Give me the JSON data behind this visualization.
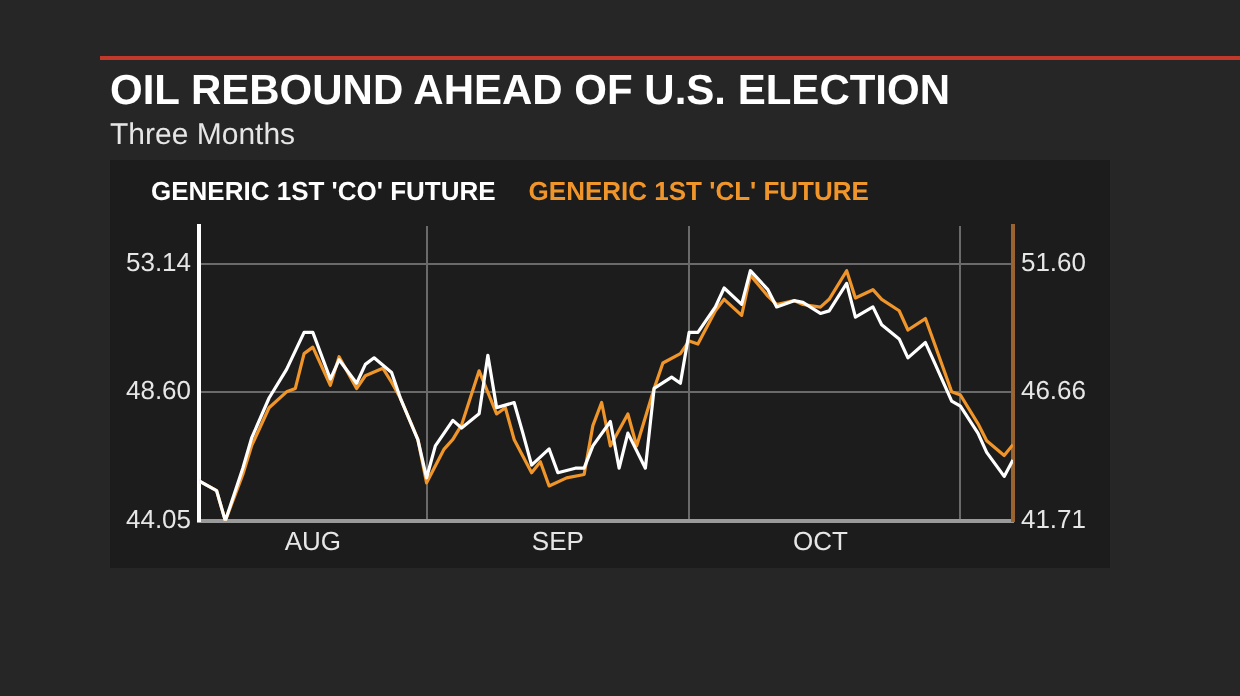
{
  "chart_data": {
    "type": "line",
    "title": "OIL REBOUND AHEAD OF U.S. ELECTION",
    "subtitle": "Three Months",
    "xlim": [
      "--08-06",
      "--11-07"
    ],
    "xticks": [
      {
        "value": "--08-19",
        "label": "AUG"
      },
      {
        "value": "--09-01",
        "label": null
      },
      {
        "value": "--09-16",
        "label": "SEP"
      },
      {
        "value": "--10-01",
        "label": null
      },
      {
        "value": "--10-16",
        "label": "OCT"
      },
      {
        "value": "--11-01",
        "label": null
      }
    ],
    "ylim": [
      44.05,
      54.47
    ],
    "yticks": [
      44.05,
      {
        "value": 48.6,
        "label": "48.60"
      },
      53.14
    ],
    "y2lim": [
      41.71,
      53.05
    ],
    "y2ticks": [
      41.71,
      46.66,
      {
        "value": 51.6,
        "label": "51.60"
      }
    ],
    "grid": true,
    "legend": "top left",
    "series": [
      {
        "name": "GENERIC 1ST 'CO' FUTURE",
        "color": "#ffffff",
        "x": [
          "--08-06",
          "--08-08",
          "--08-09",
          "--08-11",
          "--08-12",
          "--08-14",
          "--08-16",
          "--08-18",
          "--08-19",
          "--08-21",
          "--08-22",
          "--08-24",
          "--08-25",
          "--08-26",
          "--08-28",
          "--08-29",
          "--08-31",
          "--09-01",
          "--09-02",
          "--09-04",
          "--09-05",
          "--09-07",
          "--09-08",
          "--09-09",
          "--09-11",
          "--09-12",
          "--09-13",
          "--09-15",
          "--09-16",
          "--09-18",
          "--09-19",
          "--09-20",
          "--09-22",
          "--09-23",
          "--09-24",
          "--09-26",
          "--09-27",
          "--09-29",
          "--09-30",
          "--10-01",
          "--10-02",
          "--10-04",
          "--10-05",
          "--10-07",
          "--10-08",
          "--10-10",
          "--10-11",
          "--10-13",
          "--10-14",
          "--10-16",
          "--10-17",
          "--10-19",
          "--10-20",
          "--10-22",
          "--10-23",
          "--10-25",
          "--10-26",
          "--10-28",
          "--10-29",
          "--10-31",
          "--11-01",
          "--11-03",
          "--11-04",
          "--11-06",
          "--11-07"
        ],
        "values": [
          45.46,
          45.12,
          44.05,
          45.91,
          46.97,
          48.39,
          49.4,
          50.71,
          50.71,
          49.06,
          49.74,
          48.91,
          49.58,
          49.81,
          49.29,
          48.39,
          46.92,
          45.57,
          46.7,
          47.6,
          47.33,
          47.83,
          49.9,
          48.05,
          48.23,
          47.15,
          46.02,
          46.59,
          45.75,
          45.91,
          45.91,
          46.7,
          47.56,
          45.91,
          47.15,
          45.91,
          48.73,
          49.13,
          48.91,
          50.71,
          50.71,
          51.61,
          52.28,
          51.7,
          52.89,
          52.22,
          51.61,
          51.83,
          51.77,
          51.38,
          51.47,
          52.44,
          51.25,
          51.61,
          50.98,
          50.48,
          49.81,
          50.35,
          49.67,
          48.28,
          48.1,
          47.15,
          46.47,
          45.62,
          46.2
        ]
      },
      {
        "name": "GENERIC 1ST 'CL' FUTURE",
        "color": "#f0952a",
        "axis": "y2",
        "x": [
          "--08-06",
          "--08-08",
          "--08-09",
          "--08-11",
          "--08-12",
          "--08-14",
          "--08-16",
          "--08-17",
          "--08-18",
          "--08-19",
          "--08-21",
          "--08-22",
          "--08-24",
          "--08-25",
          "--08-27",
          "--08-28",
          "--08-29",
          "--08-31",
          "--09-01",
          "--09-03",
          "--09-04",
          "--09-05",
          "--09-07",
          "--09-09",
          "--09-10",
          "--09-11",
          "--09-13",
          "--09-14",
          "--09-15",
          "--09-17",
          "--09-19",
          "--09-20",
          "--09-21",
          "--09-22",
          "--09-24",
          "--09-25",
          "--09-27",
          "--09-28",
          "--09-30",
          "--10-01",
          "--10-02",
          "--10-04",
          "--10-05",
          "--10-07",
          "--10-08",
          "--10-10",
          "--10-11",
          "--10-13",
          "--10-14",
          "--10-16",
          "--10-17",
          "--10-19",
          "--10-20",
          "--10-22",
          "--10-23",
          "--10-25",
          "--10-26",
          "--10-28",
          "--10-29",
          "--10-31",
          "--11-01",
          "--11-03",
          "--11-04",
          "--11-06",
          "--11-07"
        ],
        "values": [
          43.24,
          42.87,
          41.71,
          43.49,
          44.59,
          46.06,
          46.67,
          46.8,
          48.14,
          48.39,
          46.92,
          48.02,
          46.8,
          47.29,
          47.58,
          47.04,
          46.43,
          44.84,
          43.17,
          44.47,
          44.84,
          45.4,
          47.48,
          45.82,
          46.06,
          44.84,
          43.56,
          43.98,
          43.05,
          43.36,
          43.49,
          45.37,
          46.26,
          44.59,
          45.82,
          44.59,
          46.8,
          47.78,
          48.14,
          48.63,
          48.51,
          49.79,
          50.23,
          49.61,
          51.16,
          50.35,
          50.03,
          50.18,
          50.03,
          49.93,
          50.23,
          51.33,
          50.28,
          50.6,
          50.23,
          49.79,
          49.05,
          49.49,
          48.56,
          46.67,
          46.55,
          45.45,
          44.79,
          44.22,
          44.64
        ]
      }
    ]
  }
}
